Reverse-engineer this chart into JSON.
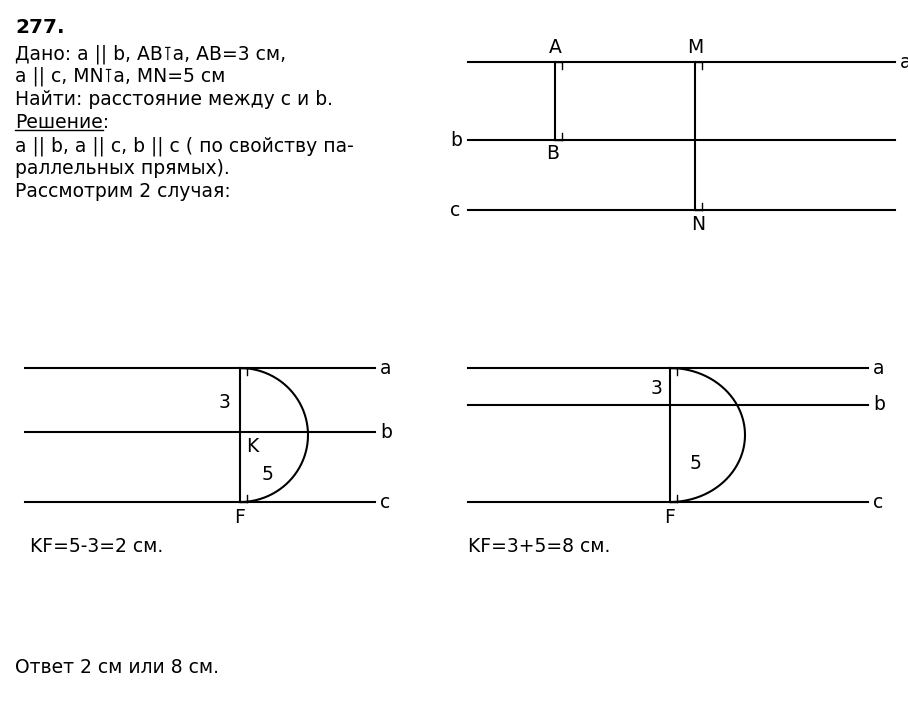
{
  "bg_color": "#ffffff",
  "text_color": "#000000",
  "title": "277.",
  "problem_lines": [
    "Дано: a || b, AB⊺a, AB=3 см,",
    "a || c, MN⊺a, MN=5 см",
    "Найти: расстояние между c и b."
  ],
  "solution_label": "Решение:",
  "solution_text1": "a || b, a || c, b || c ( по свойству па-",
  "solution_text2": "раллельных прямых).",
  "solution_text3": "Рассмотрим 2 случая:",
  "answer_text": "Ответ 2 см или 8 см.",
  "case1_formula": "KF=5-3=2 см.",
  "case2_formula": "KF=3+5=8 см."
}
